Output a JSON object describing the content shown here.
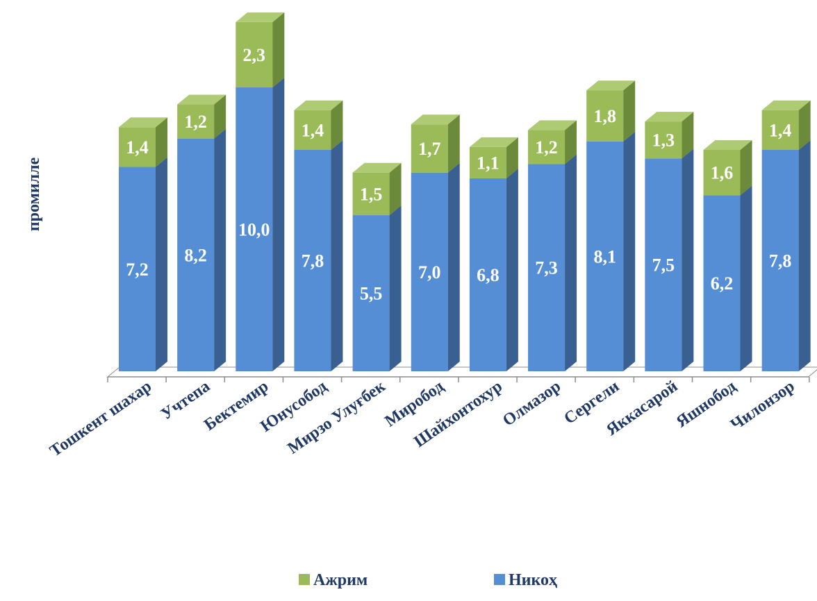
{
  "chart_data": {
    "type": "bar",
    "stacked": true,
    "three_d": true,
    "title": "",
    "xlabel": "",
    "ylabel": "промилле",
    "ylim": [
      0,
      12.5
    ],
    "grid": false,
    "legend_position": "bottom",
    "categories": [
      "Тошкент шахар",
      "Учтепа",
      "Бектемир",
      "Юнусобод",
      "Мирзо Улуғбек",
      "Миробод",
      "Шайхонтохур",
      "Олмазор",
      "Сергели",
      "Яккасарой",
      "Яшнобод",
      "Чилонзор"
    ],
    "series": [
      {
        "name": "Никоҳ",
        "color": "#558ED5",
        "values": [
          7.2,
          8.2,
          10.0,
          7.8,
          5.5,
          7.0,
          6.8,
          7.3,
          8.1,
          7.5,
          6.2,
          7.8
        ],
        "labels": [
          "7,2",
          "8,2",
          "10,0",
          "7,8",
          "5,5",
          "7,0",
          "6,8",
          "7,3",
          "8,1",
          "7,5",
          "6,2",
          "7,8"
        ]
      },
      {
        "name": "Ажрим",
        "color": "#9BBB59",
        "values": [
          1.4,
          1.2,
          2.3,
          1.4,
          1.5,
          1.7,
          1.1,
          1.2,
          1.8,
          1.3,
          1.6,
          1.4
        ],
        "labels": [
          "1,4",
          "1,2",
          "2,3",
          "1,4",
          "1,5",
          "1,7",
          "1,1",
          "1,2",
          "1,8",
          "1,3",
          "1,6",
          "1,4"
        ]
      }
    ],
    "legend": [
      {
        "name": "Ажрим",
        "color": "#9BBB59"
      },
      {
        "name": "Никоҳ",
        "color": "#558ED5"
      }
    ]
  }
}
